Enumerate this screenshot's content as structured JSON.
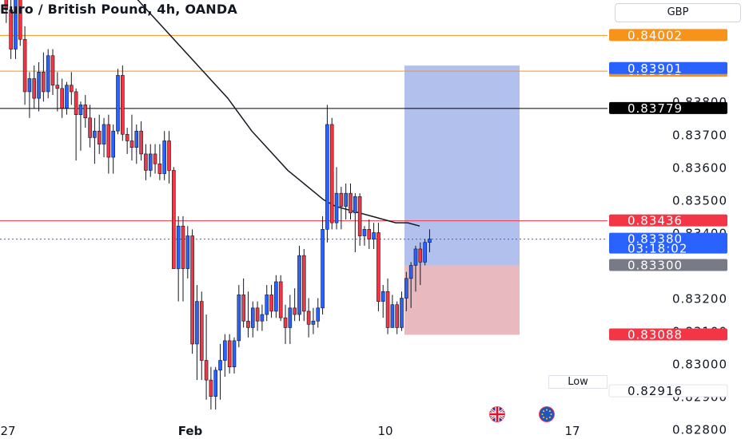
{
  "header": {
    "title": "Euro / British Pound, 4h, OANDA"
  },
  "currency_button": {
    "label": "GBP"
  },
  "low_label": "Low",
  "countdown": "03:18:02",
  "flags": [
    "gb-flag-icon",
    "eu-flag-icon"
  ],
  "colors": {
    "up": "#2962ff",
    "down": "#f23645",
    "down_outline": "#131722",
    "orange": "#f7931a",
    "red": "#f23645",
    "blue": "#2962ff",
    "black": "#000000",
    "target_zone": "#b2c0ee",
    "stop_zone": "#e8b9be"
  },
  "chart_data": {
    "type": "candlestick",
    "ylim": [
      0.8277,
      0.8411
    ],
    "price_ticks": [
      "0.84000",
      "0.83900",
      "0.83800",
      "0.83700",
      "0.83600",
      "0.83500",
      "0.83400",
      "0.83300",
      "0.83200",
      "0.83100",
      "0.83000",
      "0.82900",
      "0.82800"
    ],
    "x_ticks": [
      "27",
      "Feb",
      "10",
      "17"
    ],
    "horizontal_lines": [
      {
        "price": 0.84002,
        "label": "0.84002",
        "color": "orange"
      },
      {
        "price": 0.83893,
        "label": "0.83893",
        "color": "orange"
      },
      {
        "price": 0.83779,
        "label": "0.83779",
        "color": "black"
      },
      {
        "price": 0.83436,
        "label": "0.83436",
        "color": "red"
      }
    ],
    "price_labels": [
      {
        "price": 0.83901,
        "label": "0.83901",
        "color": "blue"
      },
      {
        "price": 0.8338,
        "label": "0.83380",
        "color": "blue",
        "current": true
      },
      {
        "price": 0.833,
        "label": "0.83300",
        "color": "gray"
      },
      {
        "price": 0.83088,
        "label": "0.83088",
        "color": "red"
      },
      {
        "price": 0.82916,
        "label": "0.82916",
        "color": "white"
      }
    ],
    "position": {
      "entry": 0.833,
      "target": 0.8391,
      "stop": 0.83088
    },
    "candles": [
      [
        0.8426,
        0.8432,
        0.8412,
        0.8415
      ],
      [
        0.8415,
        0.8421,
        0.8404,
        0.8408
      ],
      [
        0.8408,
        0.8412,
        0.8393,
        0.8396
      ],
      [
        0.8396,
        0.8426,
        0.8393,
        0.8423
      ],
      [
        0.8423,
        0.8428,
        0.8397,
        0.8399
      ],
      [
        0.8399,
        0.8403,
        0.8379,
        0.8383
      ],
      [
        0.8383,
        0.8389,
        0.8375,
        0.8387
      ],
      [
        0.8387,
        0.8391,
        0.8378,
        0.8381
      ],
      [
        0.8381,
        0.8392,
        0.8377,
        0.8389
      ],
      [
        0.8389,
        0.8395,
        0.838,
        0.8383
      ],
      [
        0.8383,
        0.8396,
        0.8381,
        0.8394
      ],
      [
        0.8394,
        0.8396,
        0.8382,
        0.8385
      ],
      [
        0.8385,
        0.8389,
        0.8377,
        0.8384
      ],
      [
        0.8384,
        0.8387,
        0.8375,
        0.8378
      ],
      [
        0.8378,
        0.8386,
        0.8376,
        0.8385
      ],
      [
        0.8385,
        0.8389,
        0.8379,
        0.8383
      ],
      [
        0.8383,
        0.8384,
        0.8362,
        0.8376
      ],
      [
        0.8376,
        0.838,
        0.8365,
        0.8379
      ],
      [
        0.8379,
        0.8382,
        0.8372,
        0.8375
      ],
      [
        0.8375,
        0.8379,
        0.8366,
        0.8369
      ],
      [
        0.8369,
        0.8375,
        0.8361,
        0.8371
      ],
      [
        0.8371,
        0.8376,
        0.8364,
        0.8367
      ],
      [
        0.8367,
        0.8375,
        0.8363,
        0.8373
      ],
      [
        0.8373,
        0.8376,
        0.8358,
        0.8363
      ],
      [
        0.8363,
        0.8373,
        0.8358,
        0.8371
      ],
      [
        0.8371,
        0.839,
        0.837,
        0.8388
      ],
      [
        0.8388,
        0.8391,
        0.8368,
        0.837
      ],
      [
        0.837,
        0.8372,
        0.8364,
        0.8368
      ],
      [
        0.8368,
        0.8376,
        0.8362,
        0.8366
      ],
      [
        0.8366,
        0.8373,
        0.8361,
        0.8371
      ],
      [
        0.8371,
        0.8374,
        0.8362,
        0.8364
      ],
      [
        0.8364,
        0.8367,
        0.8356,
        0.8359
      ],
      [
        0.8359,
        0.8367,
        0.8357,
        0.8364
      ],
      [
        0.8364,
        0.8367,
        0.8358,
        0.8361
      ],
      [
        0.8361,
        0.8367,
        0.8356,
        0.8358
      ],
      [
        0.8358,
        0.8371,
        0.8356,
        0.8368
      ],
      [
        0.8368,
        0.8371,
        0.8355,
        0.8359
      ],
      [
        0.8359,
        0.836,
        0.8329,
        0.8329
      ],
      [
        0.8329,
        0.8345,
        0.8319,
        0.8342
      ],
      [
        0.8342,
        0.8345,
        0.8319,
        0.8329
      ],
      [
        0.8329,
        0.8342,
        0.8326,
        0.8339
      ],
      [
        0.8339,
        0.8341,
        0.8303,
        0.8306
      ],
      [
        0.8306,
        0.8324,
        0.8295,
        0.8319
      ],
      [
        0.8319,
        0.8322,
        0.8295,
        0.8301
      ],
      [
        0.8301,
        0.8315,
        0.8289,
        0.8295
      ],
      [
        0.8295,
        0.8299,
        0.8286,
        0.829
      ],
      [
        0.829,
        0.8299,
        0.8286,
        0.8298
      ],
      [
        0.8298,
        0.8306,
        0.8289,
        0.8301
      ],
      [
        0.8301,
        0.8309,
        0.8296,
        0.8307
      ],
      [
        0.8307,
        0.8309,
        0.8297,
        0.8299
      ],
      [
        0.8299,
        0.8308,
        0.8297,
        0.8307
      ],
      [
        0.8307,
        0.8324,
        0.8305,
        0.8321
      ],
      [
        0.8321,
        0.8326,
        0.8311,
        0.8313
      ],
      [
        0.8313,
        0.8322,
        0.8308,
        0.8311
      ],
      [
        0.8311,
        0.8319,
        0.8308,
        0.8317
      ],
      [
        0.8317,
        0.8319,
        0.831,
        0.8313
      ],
      [
        0.8313,
        0.8318,
        0.831,
        0.8315
      ],
      [
        0.8315,
        0.8324,
        0.8313,
        0.8321
      ],
      [
        0.8321,
        0.8324,
        0.8314,
        0.8316
      ],
      [
        0.8316,
        0.8327,
        0.8314,
        0.8325
      ],
      [
        0.8325,
        0.8327,
        0.8313,
        0.8314
      ],
      [
        0.8314,
        0.8318,
        0.8306,
        0.8311
      ],
      [
        0.8311,
        0.8321,
        0.8306,
        0.8317
      ],
      [
        0.8317,
        0.8323,
        0.8313,
        0.8315
      ],
      [
        0.8315,
        0.8336,
        0.8313,
        0.8333
      ],
      [
        0.8333,
        0.8335,
        0.8313,
        0.8316
      ],
      [
        0.8316,
        0.832,
        0.8308,
        0.8312
      ],
      [
        0.8312,
        0.8317,
        0.8309,
        0.8313
      ],
      [
        0.8313,
        0.832,
        0.8311,
        0.8317
      ],
      [
        0.8317,
        0.8345,
        0.8315,
        0.8341
      ],
      [
        0.8341,
        0.8379,
        0.8337,
        0.8373
      ],
      [
        0.8373,
        0.8375,
        0.8341,
        0.8343
      ],
      [
        0.8343,
        0.836,
        0.8341,
        0.8352
      ],
      [
        0.8352,
        0.8354,
        0.8341,
        0.8348
      ],
      [
        0.8348,
        0.8355,
        0.8344,
        0.8352
      ],
      [
        0.8352,
        0.8355,
        0.8344,
        0.8346
      ],
      [
        0.8346,
        0.8352,
        0.8334,
        0.8351
      ],
      [
        0.8351,
        0.8352,
        0.8336,
        0.8339
      ],
      [
        0.8339,
        0.8342,
        0.8336,
        0.8341
      ],
      [
        0.8341,
        0.8344,
        0.8335,
        0.8338
      ],
      [
        0.8338,
        0.8343,
        0.8335,
        0.834
      ],
      [
        0.834,
        0.8343,
        0.8316,
        0.8319
      ],
      [
        0.8319,
        0.8324,
        0.8314,
        0.8322
      ],
      [
        0.8322,
        0.8326,
        0.8309,
        0.8311
      ],
      [
        0.8311,
        0.8321,
        0.8312,
        0.8318
      ],
      [
        0.8318,
        0.8319,
        0.8309,
        0.8311
      ],
      [
        0.8311,
        0.8322,
        0.831,
        0.832
      ],
      [
        0.832,
        0.8328,
        0.8316,
        0.8326
      ],
      [
        0.8326,
        0.8331,
        0.8317,
        0.833
      ],
      [
        0.833,
        0.8336,
        0.8322,
        0.8335
      ],
      [
        0.8335,
        0.8337,
        0.8324,
        0.8331
      ],
      [
        0.8331,
        0.8338,
        0.833,
        0.8337
      ],
      [
        0.8337,
        0.8341,
        0.8334,
        0.8338
      ]
    ],
    "sma": [
      0.8448,
      0.8445,
      0.8442,
      0.8439,
      0.8436,
      0.8433,
      0.8429,
      0.8426,
      0.8423,
      0.8419,
      0.8416,
      0.8413,
      0.8409,
      0.8405,
      0.8401,
      0.8397,
      0.8393,
      0.8389,
      0.8385,
      0.8381,
      0.8376,
      0.8371,
      0.8367,
      0.8363,
      0.8359,
      0.8356,
      0.8353,
      0.835,
      0.8348,
      0.8347,
      0.8346,
      0.8345,
      0.8344,
      0.8343,
      0.8343,
      0.8342
    ]
  }
}
